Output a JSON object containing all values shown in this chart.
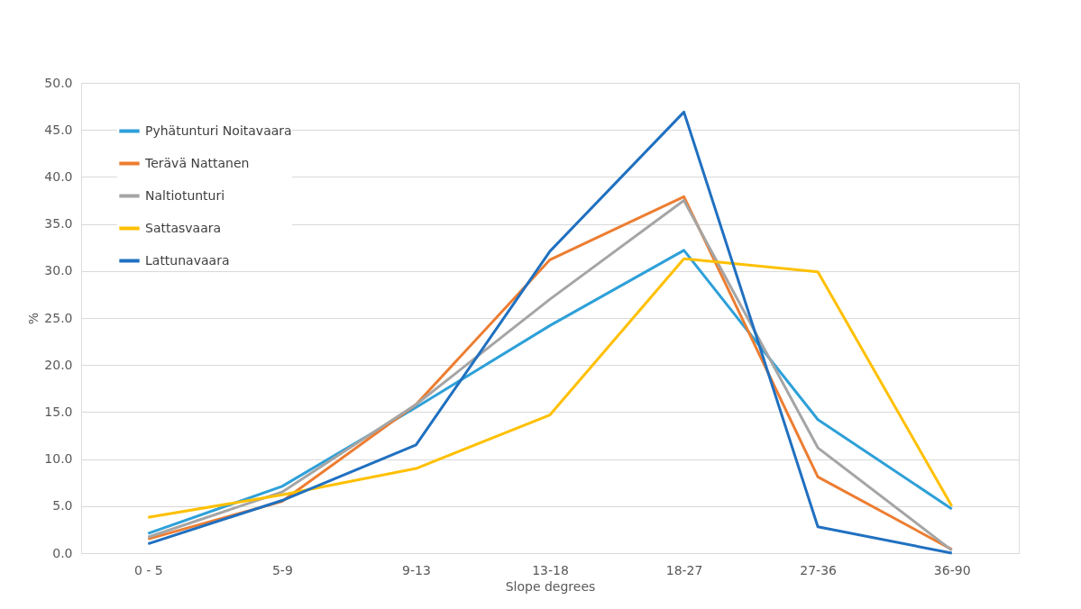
{
  "chart_data": {
    "type": "line",
    "xlabel": "Slope degrees",
    "ylabel": "%",
    "categories": [
      "0 - 5",
      "5-9",
      "9-13",
      "13-18",
      "18-27",
      "27-36",
      "36-90"
    ],
    "series": [
      {
        "name": "Pyhätunturi Noitavaara",
        "color": "#2ea0d8",
        "values": [
          2.1,
          7.1,
          15.5,
          24.2,
          32.2,
          14.2,
          4.7
        ]
      },
      {
        "name": "Terävä Nattanen",
        "color": "#ed7d31",
        "values": [
          1.5,
          5.5,
          15.8,
          31.2,
          37.9,
          8.1,
          0.4
        ]
      },
      {
        "name": "Naltiotunturi",
        "color": "#a5a5a5",
        "values": [
          1.7,
          6.5,
          15.8,
          27.0,
          37.5,
          11.2,
          0.3
        ]
      },
      {
        "name": "Sattasvaara",
        "color": "#ffc000",
        "values": [
          3.8,
          6.2,
          9.0,
          14.7,
          31.3,
          29.9,
          5.0
        ]
      },
      {
        "name": "Lattunavaara",
        "color": "#2070c0",
        "values": [
          1.0,
          5.6,
          11.5,
          32.1,
          46.9,
          2.8,
          0.0
        ]
      }
    ],
    "ylim": [
      0,
      50
    ],
    "yticks": [
      {
        "value": 0,
        "label": "0.0"
      },
      {
        "value": 5,
        "label": "5.0"
      },
      {
        "value": 10,
        "label": "10.0"
      },
      {
        "value": 15,
        "label": "15.0"
      },
      {
        "value": 20,
        "label": "20.0"
      },
      {
        "value": 25,
        "label": "25.0"
      },
      {
        "value": 30,
        "label": "30.0"
      },
      {
        "value": 35,
        "label": "35.0"
      },
      {
        "value": 40,
        "label": "40.0"
      },
      {
        "value": 45,
        "label": "45.0"
      },
      {
        "value": 50,
        "label": "50.0"
      }
    ],
    "grid": "y",
    "legend": "top left",
    "marker": "none",
    "line_style": "solid"
  }
}
